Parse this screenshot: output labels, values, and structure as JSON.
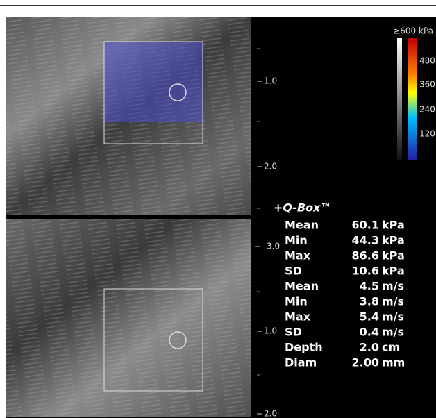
{
  "scale": {
    "title": "≥600 kPa",
    "ticks": [
      "480",
      "360",
      "240",
      "120"
    ]
  },
  "depth_top": [
    "1.0",
    "2.0",
    "3.0"
  ],
  "depth_bottom": [
    "1.0",
    "2.0"
  ],
  "qbox": {
    "title": "+Q-Box™",
    "rows": [
      [
        "Mean",
        "60.1",
        "kPa"
      ],
      [
        "Min",
        "44.3",
        "kPa"
      ],
      [
        "Max",
        "86.6",
        "kPa"
      ],
      [
        "SD",
        "10.6",
        "kPa"
      ],
      [
        "Mean",
        "4.5",
        "m/s"
      ],
      [
        "Min",
        "3.8",
        "m/s"
      ],
      [
        "Max",
        "5.4",
        "m/s"
      ],
      [
        "SD",
        "0.4",
        "m/s"
      ],
      [
        "Depth",
        "2.0",
        "cm"
      ],
      [
        "Diam",
        "2.00",
        "mm"
      ]
    ]
  }
}
